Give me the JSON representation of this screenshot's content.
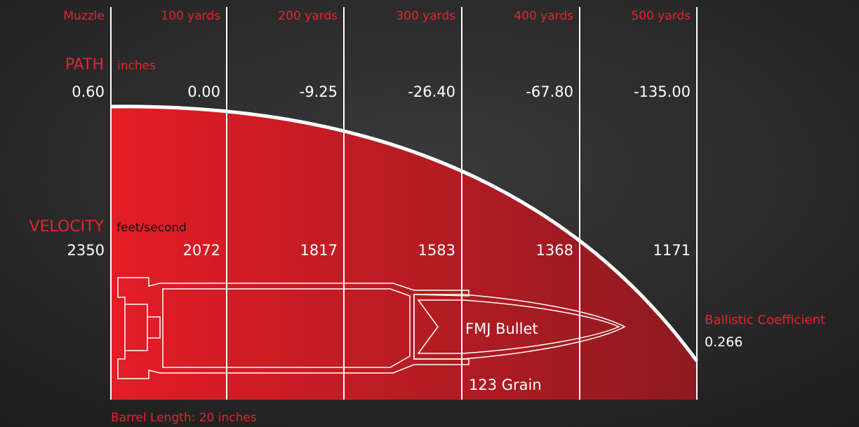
{
  "columns": [
    "Muzzle",
    "100 yards",
    "200 yards",
    "300 yards",
    "400 yards",
    "500 yards"
  ],
  "path": {
    "label": "PATH",
    "unit": "inches",
    "values": [
      "0.60",
      "0.00",
      "-9.25",
      "-26.40",
      "-67.80",
      "-135.00"
    ]
  },
  "velocity": {
    "label": "VELOCITY",
    "unit": "feet/second",
    "values": [
      "2350",
      "2072",
      "1817",
      "1583",
      "1368",
      "1171"
    ]
  },
  "bullet": {
    "type": "FMJ Bullet",
    "weight": "123 Grain"
  },
  "ballistic_coefficient": {
    "label": "Ballistic Coefficient",
    "value": "0.266"
  },
  "barrel": "Barrel Length: 20 inches"
}
